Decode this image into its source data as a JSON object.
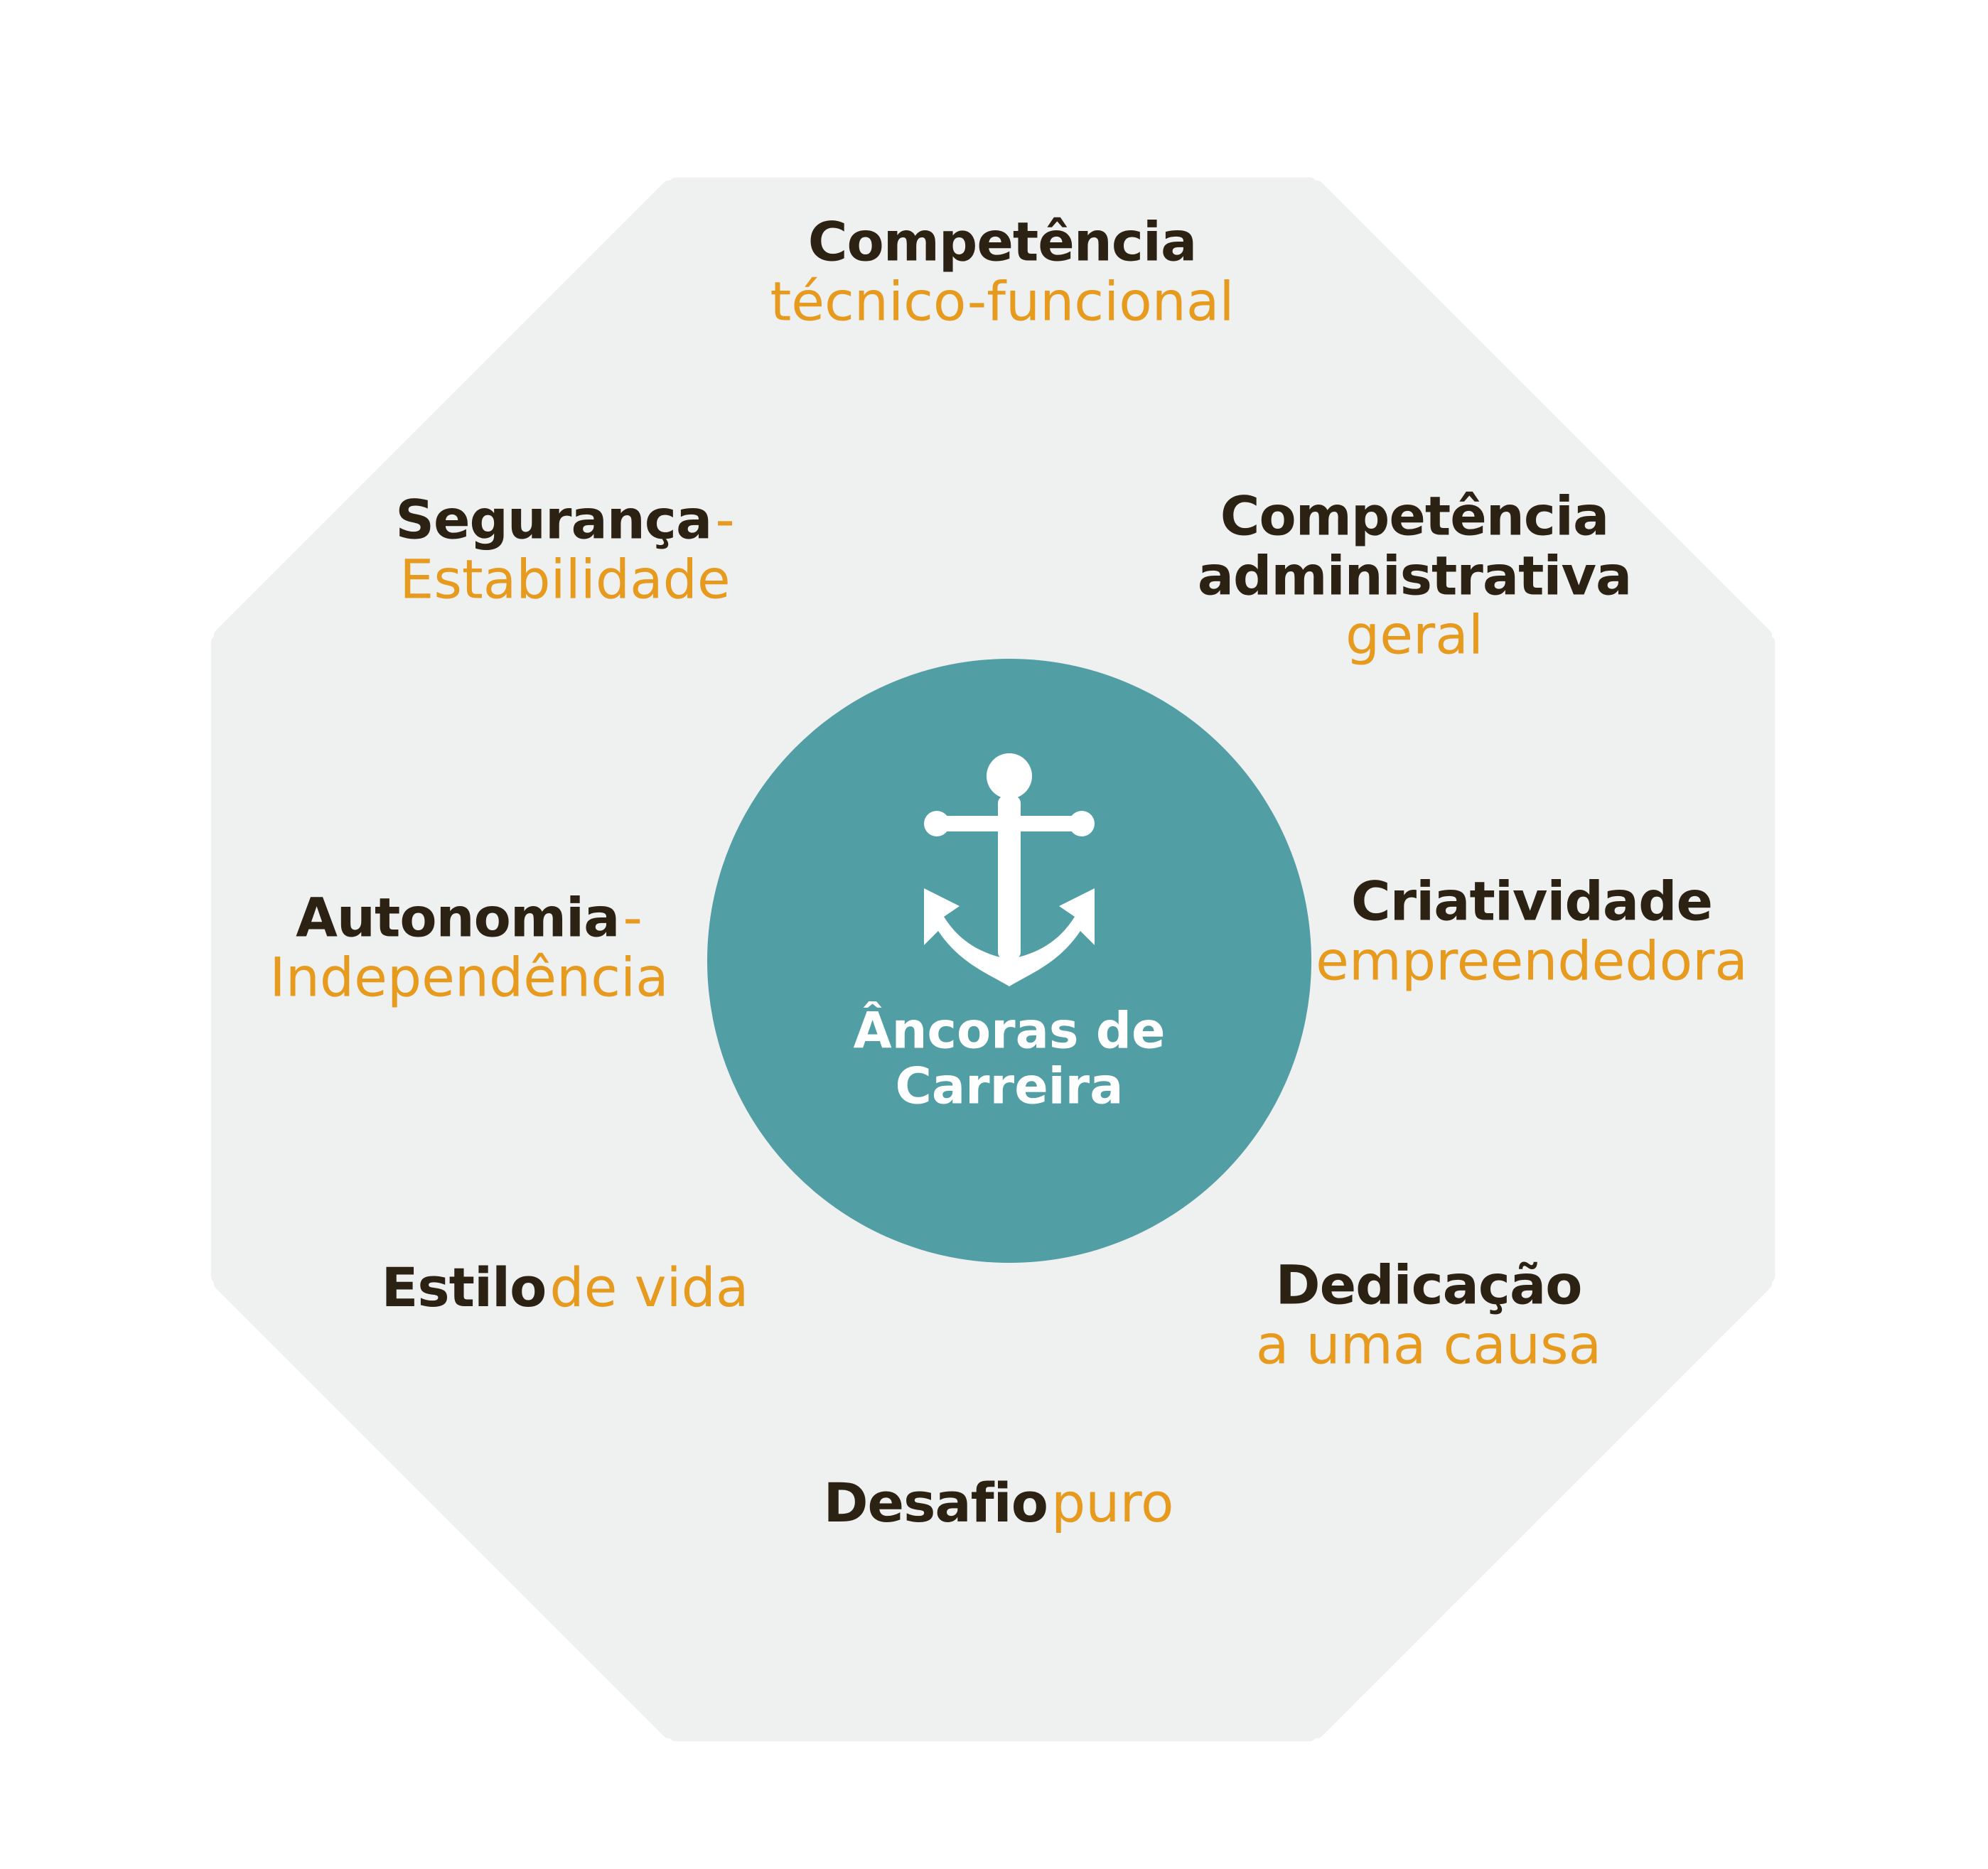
{
  "center": {
    "title_line1": "Âncoras de",
    "title_line2": "Carreira",
    "icon": "anchor-icon",
    "color": "#529ea5"
  },
  "colors": {
    "segment": "#eff0f0",
    "bold_text": "#2c2214",
    "accent_text": "#e69a1e"
  },
  "anchors": [
    {
      "bold": "Competência",
      "light": "técnico-funcional"
    },
    {
      "bold1": "Competência",
      "bold2": "administrativa",
      "light": "geral"
    },
    {
      "bold": "Criatividade",
      "light": "empreendedora"
    },
    {
      "bold": "Dedicação",
      "light": "a uma causa"
    },
    {
      "bold": "Desafio",
      "light": "puro"
    },
    {
      "bold": "Estilo",
      "light": "de vida"
    },
    {
      "bold": "Autonomia",
      "dash": "-",
      "light": "Independência"
    },
    {
      "bold": "Segurança",
      "dash": "-",
      "light": "Estabilidade"
    }
  ]
}
